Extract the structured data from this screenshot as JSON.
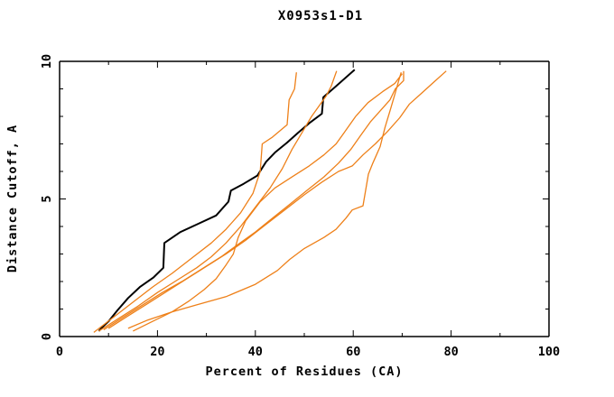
{
  "page": {
    "background": "#ffffff"
  },
  "chart_data": {
    "type": "line",
    "title": "X0953s1-D1",
    "xlabel": "Percent of Residues (CA)",
    "ylabel": "Distance Cutoff, A",
    "xlim": [
      0,
      100
    ],
    "ylim": [
      0,
      10
    ],
    "x_major_ticks": [
      0,
      20,
      40,
      60,
      80,
      100
    ],
    "x_minor_ticks": [
      10,
      30,
      50,
      70,
      90
    ],
    "y_major_ticks": [
      0,
      5,
      10
    ],
    "y_minor_ticks": [
      1,
      2,
      3,
      4,
      6,
      7,
      8,
      9
    ],
    "grid": false,
    "legend": "none",
    "frame": "full-box-inward-ticks",
    "colors": {
      "primary_model": "#000000",
      "other_models": "#ee8019",
      "axis": "#000000"
    },
    "series": [
      {
        "name": "model-black-primary",
        "color": "#000000",
        "width": 2,
        "points": [
          [
            8,
            0.2
          ],
          [
            8.8,
            0.35
          ],
          [
            10,
            0.55
          ],
          [
            11.8,
            0.95
          ],
          [
            14,
            1.4
          ],
          [
            16.4,
            1.8
          ],
          [
            19.2,
            2.15
          ],
          [
            21.2,
            2.5
          ],
          [
            21.4,
            3.4
          ],
          [
            24.7,
            3.8
          ],
          [
            28.4,
            4.1
          ],
          [
            32,
            4.4
          ],
          [
            34.5,
            4.9
          ],
          [
            35,
            5.3
          ],
          [
            37.6,
            5.55
          ],
          [
            40.4,
            5.85
          ],
          [
            42.2,
            6.35
          ],
          [
            44.1,
            6.7
          ],
          [
            46.5,
            7.05
          ],
          [
            48.7,
            7.4
          ],
          [
            51,
            7.75
          ],
          [
            53.6,
            8.1
          ],
          [
            53.9,
            8.7
          ],
          [
            56.5,
            9.1
          ],
          [
            60.3,
            9.7
          ]
        ]
      },
      {
        "name": "model-orange-1",
        "color": "#ee8019",
        "width": 1.3,
        "points": [
          [
            7,
            0.15
          ],
          [
            11,
            0.7
          ],
          [
            15,
            1.25
          ],
          [
            19,
            1.8
          ],
          [
            23,
            2.3
          ],
          [
            27,
            2.85
          ],
          [
            31,
            3.4
          ],
          [
            34,
            3.9
          ],
          [
            37,
            4.5
          ],
          [
            39.5,
            5.2
          ],
          [
            41,
            6.0
          ],
          [
            41.4,
            7.0
          ],
          [
            43.5,
            7.25
          ],
          [
            46.5,
            7.7
          ],
          [
            46.9,
            8.6
          ],
          [
            48,
            9.0
          ],
          [
            48.4,
            9.6
          ]
        ]
      },
      {
        "name": "model-orange-2",
        "color": "#ee8019",
        "width": 1.3,
        "points": [
          [
            8,
            0.2
          ],
          [
            12,
            0.65
          ],
          [
            16,
            1.1
          ],
          [
            20,
            1.6
          ],
          [
            24,
            2.05
          ],
          [
            28,
            2.5
          ],
          [
            31,
            2.9
          ],
          [
            34,
            3.4
          ],
          [
            37,
            4.0
          ],
          [
            40,
            4.7
          ],
          [
            43,
            5.4
          ],
          [
            45.5,
            6.1
          ],
          [
            47.5,
            6.8
          ],
          [
            49.5,
            7.4
          ],
          [
            51.5,
            8.0
          ],
          [
            54.5,
            8.75
          ],
          [
            55.5,
            9.1
          ],
          [
            56.6,
            9.65
          ]
        ]
      },
      {
        "name": "model-orange-3",
        "color": "#ee8019",
        "width": 1.3,
        "points": [
          [
            9,
            0.25
          ],
          [
            13,
            0.7
          ],
          [
            17,
            1.15
          ],
          [
            21,
            1.6
          ],
          [
            25,
            2.0
          ],
          [
            29,
            2.45
          ],
          [
            33,
            2.9
          ],
          [
            36.5,
            3.35
          ],
          [
            40,
            3.8
          ],
          [
            43.5,
            4.3
          ],
          [
            47,
            4.8
          ],
          [
            50.5,
            5.3
          ],
          [
            54,
            5.8
          ],
          [
            57,
            6.3
          ],
          [
            59.5,
            6.8
          ],
          [
            61.5,
            7.3
          ],
          [
            63.5,
            7.8
          ],
          [
            65.5,
            8.2
          ],
          [
            67.5,
            8.6
          ],
          [
            68.6,
            9.0
          ],
          [
            70.3,
            9.3
          ],
          [
            70.3,
            9.65
          ]
        ]
      },
      {
        "name": "model-orange-4",
        "color": "#ee8019",
        "width": 1.3,
        "points": [
          [
            10,
            0.3
          ],
          [
            14,
            0.75
          ],
          [
            18,
            1.2
          ],
          [
            22,
            1.65
          ],
          [
            26,
            2.1
          ],
          [
            30,
            2.55
          ],
          [
            34,
            3.0
          ],
          [
            38,
            3.5
          ],
          [
            42,
            4.05
          ],
          [
            46,
            4.6
          ],
          [
            50,
            5.15
          ],
          [
            53.5,
            5.6
          ],
          [
            57,
            6.0
          ],
          [
            59.8,
            6.2
          ],
          [
            62,
            6.6
          ],
          [
            64.5,
            7.0
          ],
          [
            67,
            7.45
          ],
          [
            69.5,
            7.95
          ],
          [
            71.5,
            8.45
          ],
          [
            74,
            8.85
          ],
          [
            76.5,
            9.25
          ],
          [
            79,
            9.65
          ]
        ]
      },
      {
        "name": "model-orange-5",
        "color": "#ee8019",
        "width": 1.3,
        "points": [
          [
            15,
            0.2
          ],
          [
            19,
            0.55
          ],
          [
            23,
            0.9
          ],
          [
            26.5,
            1.3
          ],
          [
            29.5,
            1.7
          ],
          [
            32,
            2.1
          ],
          [
            34,
            2.6
          ],
          [
            35.5,
            3.0
          ],
          [
            36.5,
            3.6
          ],
          [
            38,
            4.2
          ],
          [
            41,
            4.9
          ],
          [
            44,
            5.4
          ],
          [
            47.5,
            5.8
          ],
          [
            51,
            6.2
          ],
          [
            54,
            6.6
          ],
          [
            56.5,
            7.0
          ],
          [
            58.5,
            7.5
          ],
          [
            60.5,
            8.0
          ],
          [
            63,
            8.5
          ],
          [
            66,
            8.9
          ],
          [
            68.5,
            9.2
          ],
          [
            70,
            9.55
          ]
        ]
      },
      {
        "name": "model-orange-6",
        "color": "#ee8019",
        "width": 1.3,
        "points": [
          [
            14,
            0.3
          ],
          [
            18,
            0.6
          ],
          [
            23,
            0.9
          ],
          [
            28,
            1.15
          ],
          [
            34,
            1.45
          ],
          [
            40,
            1.9
          ],
          [
            44.5,
            2.4
          ],
          [
            47,
            2.8
          ],
          [
            50,
            3.2
          ],
          [
            54,
            3.6
          ],
          [
            56.5,
            3.9
          ],
          [
            58.5,
            4.3
          ],
          [
            59.8,
            4.6
          ],
          [
            62,
            4.75
          ],
          [
            63.1,
            5.9
          ],
          [
            64,
            6.3
          ],
          [
            65.5,
            6.9
          ],
          [
            66.5,
            7.6
          ],
          [
            67.5,
            8.2
          ],
          [
            68.5,
            8.8
          ],
          [
            69.3,
            9.3
          ],
          [
            69.8,
            9.6
          ]
        ]
      }
    ]
  }
}
